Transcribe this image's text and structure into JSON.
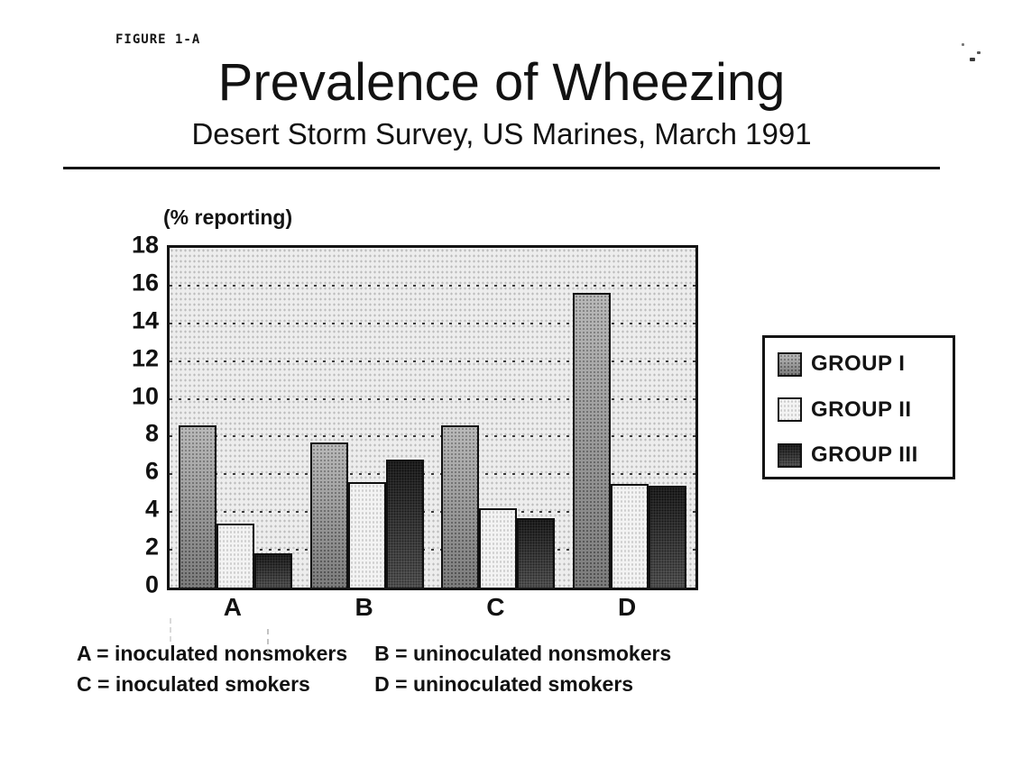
{
  "figure_label": "FIGURE 1-A",
  "header": {
    "title": "Prevalence of Wheezing",
    "subtitle": "Desert Storm Survey, US Marines, March 1991"
  },
  "chart_data": {
    "type": "bar",
    "title": "Prevalence of Wheezing",
    "subtitle": "Desert Storm Survey, US Marines, March 1991",
    "ylabel": "(% reporting)",
    "xlabel": "",
    "categories": [
      "A",
      "B",
      "C",
      "D"
    ],
    "series": [
      {
        "name": "GROUP I",
        "values": [
          8.6,
          7.7,
          8.6,
          15.6
        ]
      },
      {
        "name": "GROUP II",
        "values": [
          3.4,
          5.6,
          4.2,
          5.5
        ]
      },
      {
        "name": "GROUP III",
        "values": [
          1.8,
          6.8,
          3.7,
          5.4
        ]
      }
    ],
    "ylim": [
      0,
      18
    ],
    "yticks": [
      0,
      2,
      4,
      6,
      8,
      10,
      12,
      14,
      16,
      18
    ],
    "gridline_values": [
      2,
      4,
      6,
      8,
      10,
      12,
      14,
      16
    ],
    "grid": "horizontal-dotted",
    "legend_position": "right",
    "legend_labels": [
      "GROUP I",
      "GROUP II",
      "GROUP III"
    ],
    "series_colors": [
      "#a7a7a7",
      "#f3f3f3",
      "#404040"
    ]
  },
  "footnotes": {
    "a": "A = inoculated nonsmokers",
    "b": "B = uninoculated nonsmokers",
    "c": "C = inoculated smokers",
    "d": "D = uninoculated smokers"
  }
}
